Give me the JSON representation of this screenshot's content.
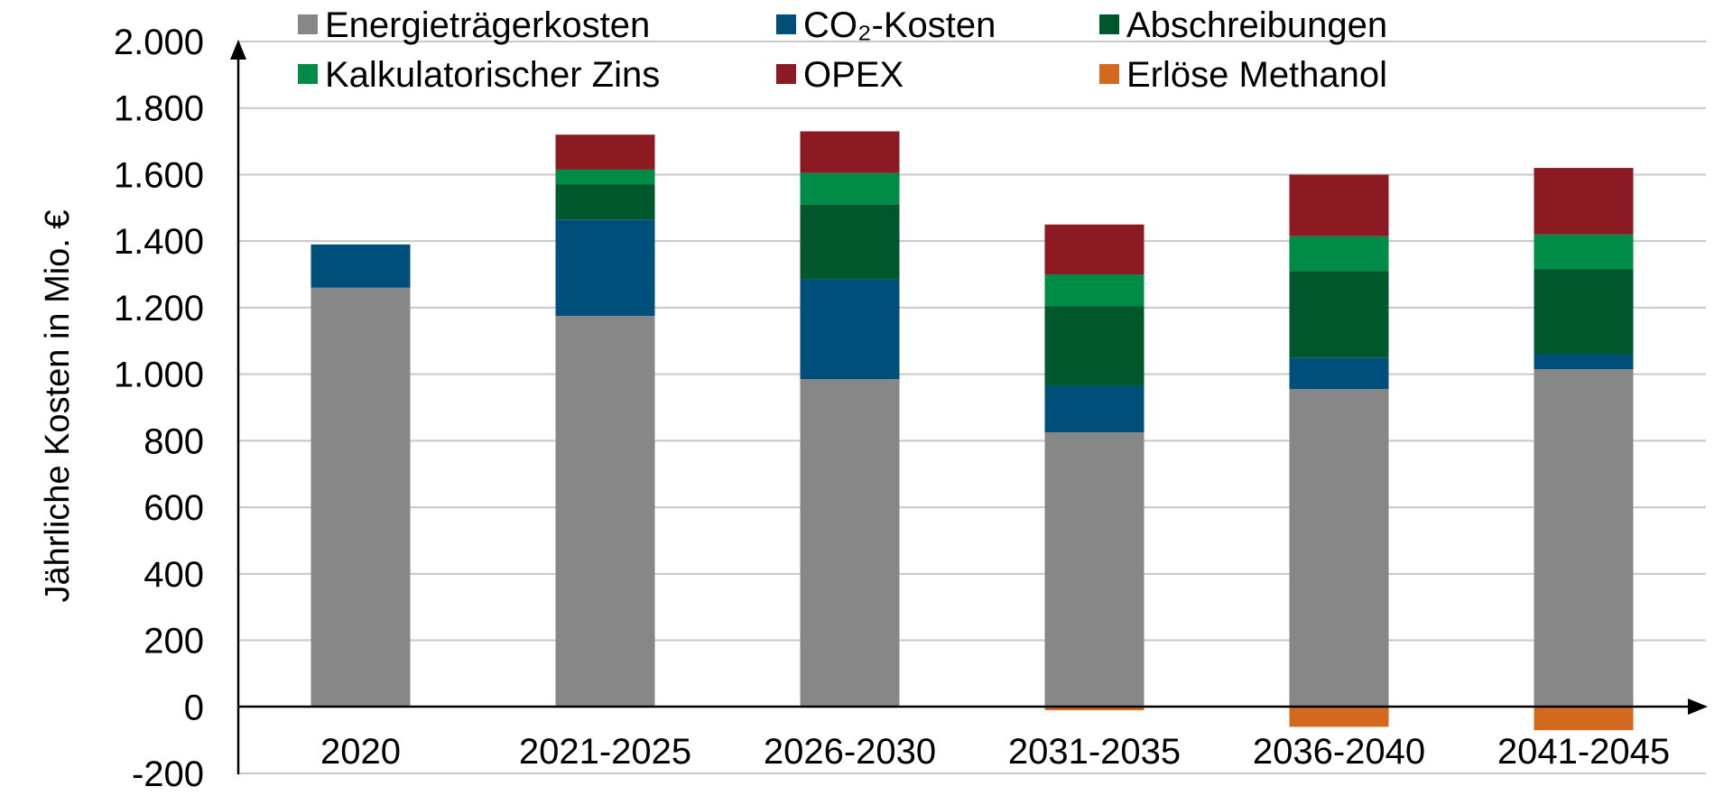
{
  "chart_data": {
    "type": "bar",
    "stacked": true,
    "title": "",
    "xlabel": "",
    "ylabel": "Jährliche Kosten in Mio. €",
    "ylim": [
      -200,
      2000
    ],
    "yticks": [
      -200,
      0,
      200,
      400,
      600,
      800,
      1000,
      1200,
      1400,
      1600,
      1800,
      2000
    ],
    "ytick_labels": [
      "-200",
      "0",
      "200",
      "400",
      "600",
      "800",
      "1.000",
      "1.200",
      "1.400",
      "1.600",
      "1.800",
      "2.000"
    ],
    "grid": true,
    "legend_position": "top",
    "categories": [
      "2020",
      "2021-2025",
      "2026-2030",
      "2031-2035",
      "2036-2040",
      "2041-2045"
    ],
    "series": [
      {
        "name": "Energieträgerkosten",
        "color": "#878787",
        "values": [
          1260,
          1175,
          985,
          825,
          955,
          1015
        ]
      },
      {
        "name": "CO₂-Kosten",
        "color": "#004f7a",
        "values": [
          130,
          290,
          300,
          140,
          95,
          45
        ]
      },
      {
        "name": "Abschreibungen",
        "color": "#00572c",
        "values": [
          0,
          105,
          225,
          240,
          260,
          255
        ]
      },
      {
        "name": "Kalkulatorischer Zins",
        "color": "#008b46",
        "values": [
          0,
          45,
          95,
          95,
          105,
          105
        ]
      },
      {
        "name": "OPEX",
        "color": "#8b1a22",
        "values": [
          0,
          105,
          125,
          150,
          185,
          200
        ]
      },
      {
        "name": "Erlöse Methanol",
        "color": "#d2691e",
        "values": [
          0,
          0,
          0,
          -10,
          -60,
          -70
        ]
      }
    ]
  }
}
